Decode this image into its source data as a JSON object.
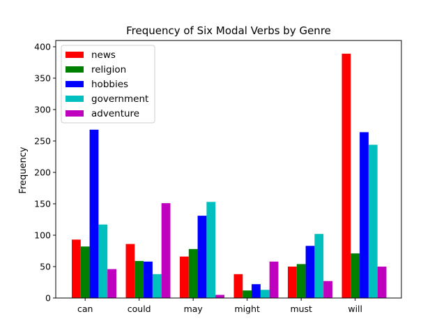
{
  "chart_data": {
    "type": "bar",
    "title": "Frequency of Six Modal Verbs by Genre",
    "xlabel": "",
    "ylabel": "Frequency",
    "ylim": [
      0,
      410
    ],
    "yticks": [
      0,
      50,
      100,
      150,
      200,
      250,
      300,
      350,
      400
    ],
    "categories": [
      "can",
      "could",
      "may",
      "might",
      "must",
      "will"
    ],
    "series": [
      {
        "name": "news",
        "color": "#ff0000",
        "values": [
          93,
          86,
          66,
          38,
          50,
          389
        ]
      },
      {
        "name": "religion",
        "color": "#008000",
        "values": [
          82,
          59,
          78,
          12,
          54,
          71
        ]
      },
      {
        "name": "hobbies",
        "color": "#0000ff",
        "values": [
          268,
          58,
          131,
          22,
          83,
          264
        ]
      },
      {
        "name": "government",
        "color": "#00bfbf",
        "values": [
          117,
          38,
          153,
          13,
          102,
          244
        ]
      },
      {
        "name": "adventure",
        "color": "#bf00bf",
        "values": [
          46,
          151,
          5,
          58,
          27,
          50
        ]
      }
    ],
    "legend_position": "top-left",
    "grid": false
  }
}
